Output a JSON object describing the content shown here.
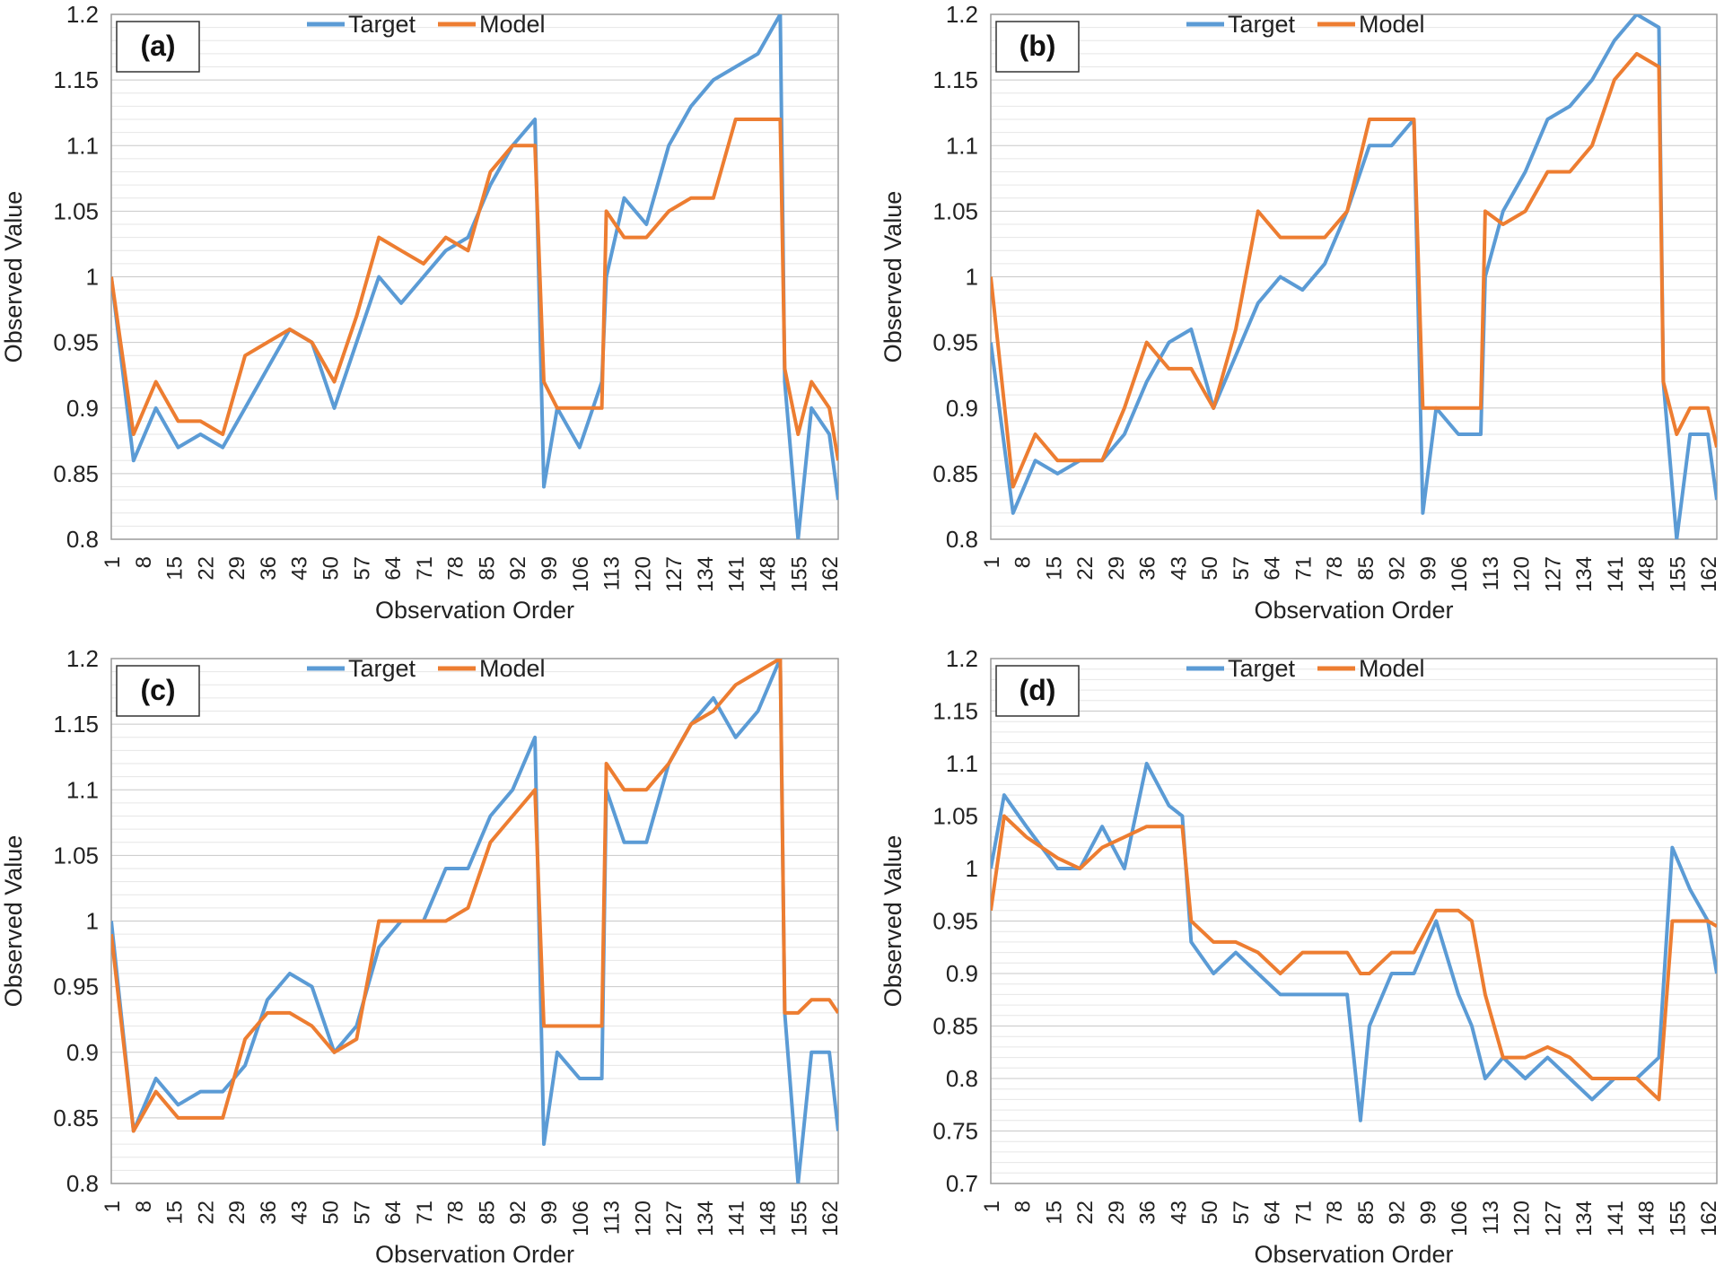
{
  "chart_data": [
    {
      "type": "line",
      "panel": "(a)",
      "xlabel": "Observation Order",
      "ylabel": "Observed Value",
      "ylim": [
        0.8,
        1.2
      ],
      "yticks": [
        "0.8",
        "0.85",
        "0.9",
        "0.95",
        "1",
        "1.05",
        "1.1",
        "1.15",
        "1.2"
      ],
      "xlim": [
        1,
        164
      ],
      "xticks": [
        "1",
        "8",
        "15",
        "22",
        "29",
        "36",
        "43",
        "50",
        "57",
        "64",
        "71",
        "78",
        "85",
        "92",
        "99",
        "106",
        "113",
        "120",
        "127",
        "134",
        "141",
        "148",
        "155",
        "162"
      ],
      "legend": [
        "Target",
        "Model"
      ],
      "legend_position": "top-center",
      "gridlines": "horizontal",
      "series": [
        {
          "name": "Target",
          "color": "#5B9BD5",
          "x": [
            1,
            6,
            11,
            16,
            21,
            26,
            31,
            36,
            41,
            46,
            51,
            56,
            61,
            66,
            71,
            76,
            81,
            86,
            91,
            96,
            98,
            101,
            106,
            111,
            112,
            116,
            121,
            126,
            131,
            136,
            141,
            146,
            151,
            152,
            155,
            158,
            162,
            164
          ],
          "y": [
            1.0,
            0.86,
            0.9,
            0.87,
            0.88,
            0.87,
            0.9,
            0.93,
            0.96,
            0.95,
            0.9,
            0.95,
            1.0,
            0.98,
            1.0,
            1.02,
            1.03,
            1.07,
            1.1,
            1.12,
            0.84,
            0.9,
            0.87,
            0.92,
            1.0,
            1.06,
            1.04,
            1.1,
            1.13,
            1.15,
            1.16,
            1.17,
            1.2,
            0.92,
            0.8,
            0.9,
            0.88,
            0.83
          ]
        },
        {
          "name": "Model",
          "color": "#ED7D31",
          "x": [
            1,
            6,
            11,
            16,
            21,
            26,
            31,
            36,
            41,
            46,
            51,
            56,
            61,
            66,
            71,
            76,
            81,
            86,
            91,
            96,
            98,
            101,
            106,
            111,
            112,
            116,
            121,
            126,
            131,
            136,
            141,
            146,
            151,
            152,
            155,
            158,
            162,
            164
          ],
          "y": [
            1.0,
            0.88,
            0.92,
            0.89,
            0.89,
            0.88,
            0.94,
            0.95,
            0.96,
            0.95,
            0.92,
            0.97,
            1.03,
            1.02,
            1.01,
            1.03,
            1.02,
            1.08,
            1.1,
            1.1,
            0.92,
            0.9,
            0.9,
            0.9,
            1.05,
            1.03,
            1.03,
            1.05,
            1.06,
            1.06,
            1.12,
            1.12,
            1.12,
            0.93,
            0.88,
            0.92,
            0.9,
            0.86
          ]
        }
      ]
    },
    {
      "type": "line",
      "panel": "(b)",
      "xlabel": "Observation Order",
      "ylabel": "Observed Value",
      "ylim": [
        0.8,
        1.2
      ],
      "yticks": [
        "0.8",
        "0.85",
        "0.9",
        "0.95",
        "1",
        "1.05",
        "1.1",
        "1.15",
        "1.2"
      ],
      "xlim": [
        1,
        164
      ],
      "xticks": [
        "1",
        "8",
        "15",
        "22",
        "29",
        "36",
        "43",
        "50",
        "57",
        "64",
        "71",
        "78",
        "85",
        "92",
        "99",
        "106",
        "113",
        "120",
        "127",
        "134",
        "141",
        "148",
        "155",
        "162"
      ],
      "legend": [
        "Target",
        "Model"
      ],
      "legend_position": "top-center",
      "gridlines": "horizontal",
      "series": [
        {
          "name": "Target",
          "color": "#5B9BD5",
          "x": [
            1,
            6,
            11,
            16,
            21,
            26,
            31,
            36,
            41,
            46,
            51,
            56,
            61,
            66,
            71,
            76,
            81,
            86,
            91,
            96,
            98,
            101,
            106,
            111,
            112,
            116,
            121,
            126,
            131,
            136,
            141,
            146,
            151,
            152,
            155,
            158,
            162,
            164
          ],
          "y": [
            0.95,
            0.82,
            0.86,
            0.85,
            0.86,
            0.86,
            0.88,
            0.92,
            0.95,
            0.96,
            0.9,
            0.94,
            0.98,
            1.0,
            0.99,
            1.01,
            1.05,
            1.1,
            1.1,
            1.12,
            0.82,
            0.9,
            0.88,
            0.88,
            1.0,
            1.05,
            1.08,
            1.12,
            1.13,
            1.15,
            1.18,
            1.2,
            1.19,
            0.92,
            0.8,
            0.88,
            0.88,
            0.83
          ]
        },
        {
          "name": "Model",
          "color": "#ED7D31",
          "x": [
            1,
            6,
            11,
            16,
            21,
            26,
            31,
            36,
            41,
            46,
            51,
            56,
            61,
            66,
            71,
            76,
            81,
            86,
            91,
            96,
            98,
            101,
            106,
            111,
            112,
            116,
            121,
            126,
            131,
            136,
            141,
            146,
            151,
            152,
            155,
            158,
            162,
            164
          ],
          "y": [
            1.0,
            0.84,
            0.88,
            0.86,
            0.86,
            0.86,
            0.9,
            0.95,
            0.93,
            0.93,
            0.9,
            0.96,
            1.05,
            1.03,
            1.03,
            1.03,
            1.05,
            1.12,
            1.12,
            1.12,
            0.9,
            0.9,
            0.9,
            0.9,
            1.05,
            1.04,
            1.05,
            1.08,
            1.08,
            1.1,
            1.15,
            1.17,
            1.16,
            0.92,
            0.88,
            0.9,
            0.9,
            0.87
          ]
        }
      ]
    },
    {
      "type": "line",
      "panel": "(c)",
      "xlabel": "Observation Order",
      "ylabel": "Observed Value",
      "ylim": [
        0.8,
        1.2
      ],
      "yticks": [
        "0.8",
        "0.85",
        "0.9",
        "0.95",
        "1",
        "1.05",
        "1.1",
        "1.15",
        "1.2"
      ],
      "xlim": [
        1,
        164
      ],
      "xticks": [
        "1",
        "8",
        "15",
        "22",
        "29",
        "36",
        "43",
        "50",
        "57",
        "64",
        "71",
        "78",
        "85",
        "92",
        "99",
        "106",
        "113",
        "120",
        "127",
        "134",
        "141",
        "148",
        "155",
        "162"
      ],
      "legend": [
        "Target",
        "Model"
      ],
      "legend_position": "top-center",
      "gridlines": "horizontal",
      "series": [
        {
          "name": "Target",
          "color": "#5B9BD5",
          "x": [
            1,
            6,
            11,
            16,
            21,
            26,
            31,
            36,
            41,
            46,
            51,
            56,
            61,
            66,
            71,
            76,
            81,
            86,
            91,
            96,
            98,
            101,
            106,
            111,
            112,
            116,
            121,
            126,
            131,
            136,
            141,
            146,
            151,
            152,
            155,
            158,
            162,
            164
          ],
          "y": [
            1.0,
            0.84,
            0.88,
            0.86,
            0.87,
            0.87,
            0.89,
            0.94,
            0.96,
            0.95,
            0.9,
            0.92,
            0.98,
            1.0,
            1.0,
            1.04,
            1.04,
            1.08,
            1.1,
            1.14,
            0.83,
            0.9,
            0.88,
            0.88,
            1.1,
            1.06,
            1.06,
            1.12,
            1.15,
            1.17,
            1.14,
            1.16,
            1.2,
            0.93,
            0.8,
            0.9,
            0.9,
            0.84
          ]
        },
        {
          "name": "Model",
          "color": "#ED7D31",
          "x": [
            1,
            6,
            11,
            16,
            21,
            26,
            31,
            36,
            41,
            46,
            51,
            56,
            61,
            66,
            71,
            76,
            81,
            86,
            91,
            96,
            98,
            101,
            106,
            111,
            112,
            116,
            121,
            126,
            131,
            136,
            141,
            146,
            151,
            152,
            155,
            158,
            162,
            164
          ],
          "y": [
            0.99,
            0.84,
            0.87,
            0.85,
            0.85,
            0.85,
            0.91,
            0.93,
            0.93,
            0.92,
            0.9,
            0.91,
            1.0,
            1.0,
            1.0,
            1.0,
            1.01,
            1.06,
            1.08,
            1.1,
            0.92,
            0.92,
            0.92,
            0.92,
            1.12,
            1.1,
            1.1,
            1.12,
            1.15,
            1.16,
            1.18,
            1.19,
            1.2,
            0.93,
            0.93,
            0.94,
            0.94,
            0.93
          ]
        }
      ]
    },
    {
      "type": "line",
      "panel": "(d)",
      "xlabel": "Observation Order",
      "ylabel": "Observed Value",
      "ylim": [
        0.7,
        1.2
      ],
      "yticks": [
        "0.7",
        "0.75",
        "0.8",
        "0.85",
        "0.9",
        "0.95",
        "1",
        "1.05",
        "1.1",
        "1.15",
        "1.2"
      ],
      "xlim": [
        1,
        164
      ],
      "xticks": [
        "1",
        "8",
        "15",
        "22",
        "29",
        "36",
        "43",
        "50",
        "57",
        "64",
        "71",
        "78",
        "85",
        "92",
        "99",
        "106",
        "113",
        "120",
        "127",
        "134",
        "141",
        "148",
        "155",
        "162"
      ],
      "legend": [
        "Target",
        "Model"
      ],
      "legend_position": "top-center",
      "gridlines": "horizontal",
      "series": [
        {
          "name": "Target",
          "color": "#5B9BD5",
          "x": [
            1,
            4,
            9,
            16,
            21,
            26,
            31,
            36,
            41,
            44,
            46,
            51,
            56,
            61,
            66,
            71,
            76,
            81,
            84,
            86,
            91,
            96,
            101,
            106,
            109,
            112,
            116,
            121,
            126,
            131,
            136,
            141,
            146,
            151,
            154,
            156,
            158,
            162,
            164
          ],
          "y": [
            1.0,
            1.07,
            1.04,
            1.0,
            1.0,
            1.04,
            1.0,
            1.1,
            1.06,
            1.05,
            0.93,
            0.9,
            0.92,
            0.9,
            0.88,
            0.88,
            0.88,
            0.88,
            0.76,
            0.85,
            0.9,
            0.9,
            0.95,
            0.88,
            0.85,
            0.8,
            0.82,
            0.8,
            0.82,
            0.8,
            0.78,
            0.8,
            0.8,
            0.82,
            1.02,
            1.0,
            0.98,
            0.95,
            0.9
          ]
        },
        {
          "name": "Model",
          "color": "#ED7D31",
          "x": [
            1,
            4,
            9,
            16,
            21,
            26,
            31,
            36,
            41,
            44,
            46,
            51,
            56,
            61,
            66,
            71,
            76,
            81,
            84,
            86,
            91,
            96,
            101,
            106,
            109,
            112,
            116,
            121,
            126,
            131,
            136,
            141,
            146,
            151,
            154,
            156,
            158,
            162,
            164
          ],
          "y": [
            0.96,
            1.05,
            1.03,
            1.01,
            1.0,
            1.02,
            1.03,
            1.04,
            1.04,
            1.04,
            0.95,
            0.93,
            0.93,
            0.92,
            0.9,
            0.92,
            0.92,
            0.92,
            0.9,
            0.9,
            0.92,
            0.92,
            0.96,
            0.96,
            0.95,
            0.88,
            0.82,
            0.82,
            0.83,
            0.82,
            0.8,
            0.8,
            0.8,
            0.78,
            0.95,
            0.95,
            0.95,
            0.95,
            0.945
          ]
        }
      ]
    }
  ]
}
